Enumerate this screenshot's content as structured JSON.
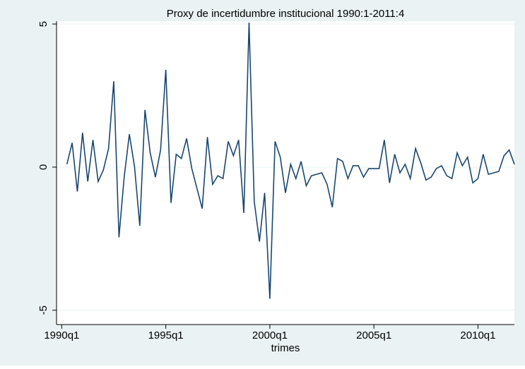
{
  "chart_data": {
    "type": "line",
    "title": "Proxy de incertidumbre institucional 1990:1-2011:4",
    "xlabel": "trimes",
    "x": [
      "1990q2",
      "1990q3",
      "1990q4",
      "1991q1",
      "1991q2",
      "1991q3",
      "1991q4",
      "1992q1",
      "1992q2",
      "1992q3",
      "1992q4",
      "1993q1",
      "1993q2",
      "1993q3",
      "1993q4",
      "1994q1",
      "1994q2",
      "1994q3",
      "1994q4",
      "1995q1",
      "1995q2",
      "1995q3",
      "1995q4",
      "1996q1",
      "1996q2",
      "1996q3",
      "1996q4",
      "1997q1",
      "1997q2",
      "1997q3",
      "1997q4",
      "1998q1",
      "1998q2",
      "1998q3",
      "1998q4",
      "1999q1",
      "1999q2",
      "1999q3",
      "1999q4",
      "2000q1",
      "2000q2",
      "2000q3",
      "2000q4",
      "2001q1",
      "2001q2",
      "2001q3",
      "2001q4",
      "2002q1",
      "2002q2",
      "2002q3",
      "2002q4",
      "2003q1",
      "2003q2",
      "2003q3",
      "2003q4",
      "2004q1",
      "2004q2",
      "2004q3",
      "2004q4",
      "2005q1",
      "2005q2",
      "2005q3",
      "2005q4",
      "2006q1",
      "2006q2",
      "2006q3",
      "2006q4",
      "2007q1",
      "2007q2",
      "2007q3",
      "2007q4",
      "2008q1",
      "2008q2",
      "2008q3",
      "2008q4",
      "2009q1",
      "2009q2",
      "2009q3",
      "2009q4",
      "2010q1",
      "2010q2",
      "2010q3",
      "2010q4",
      "2011q1",
      "2011q2",
      "2011q3",
      "2011q4"
    ],
    "series": [
      {
        "color": "#1a476f",
        "values": [
          0.1,
          0.85,
          -0.85,
          1.2,
          -0.5,
          0.95,
          -0.5,
          -0.1,
          0.65,
          3.0,
          -2.45,
          -0.35,
          1.15,
          0,
          -2.05,
          2.0,
          0.5,
          -0.35,
          0.6,
          3.4,
          -1.25,
          0.45,
          0.3,
          1.0,
          -0.05,
          -0.75,
          -1.45,
          1.05,
          -0.6,
          -0.3,
          -0.4,
          0.9,
          0.4,
          0.95,
          -1.6,
          5.05,
          -1.2,
          -2.6,
          -0.9,
          -4.6,
          0.9,
          0.35,
          -0.9,
          0.1,
          -0.4,
          0.2,
          -0.65,
          -0.3,
          -0.25,
          -0.2,
          -0.6,
          -1.4,
          0.3,
          0.2,
          -0.4,
          0.05,
          0.05,
          -0.35,
          -0.05,
          -0.05,
          -0.05,
          0.95,
          -0.55,
          0.45,
          -0.2,
          0.1,
          -0.4,
          0.65,
          0.15,
          -0.45,
          -0.35,
          -0.05,
          0.05,
          -0.3,
          -0.4,
          0.5,
          0.05,
          0.35,
          -0.55,
          -0.4,
          0.45,
          -0.25,
          -0.2,
          -0.15,
          0.4,
          0.6,
          0.1
        ]
      }
    ],
    "xlim": [
      "1989q4",
      "2011q4"
    ],
    "xticks": [
      "1990q1",
      "1995q1",
      "2000q1",
      "2005q1",
      "2010q1"
    ],
    "ylim": [
      -5.5,
      5.1
    ],
    "yticks": [
      -5,
      0,
      5
    ],
    "grid": true
  }
}
